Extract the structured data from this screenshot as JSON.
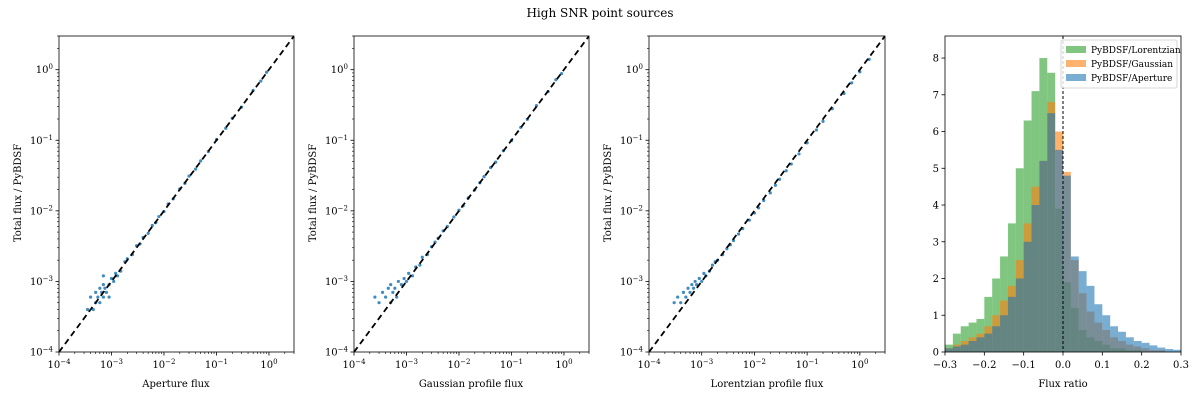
{
  "figure": {
    "title": "High SNR point sources"
  },
  "chart_data": [
    {
      "type": "scatter",
      "xlabel": "Aperture flux",
      "ylabel": "Total flux / PyBDSF",
      "xscale": "log",
      "yscale": "log",
      "xlim": [
        0.0001,
        3
      ],
      "ylim": [
        0.0001,
        3
      ],
      "xticks": [
        {
          "v": 0.0001,
          "b": "10",
          "e": "−4"
        },
        {
          "v": 0.001,
          "b": "10",
          "e": "−3"
        },
        {
          "v": 0.01,
          "b": "10",
          "e": "−2"
        },
        {
          "v": 0.1,
          "b": "10",
          "e": "−1"
        },
        {
          "v": 1,
          "b": "10",
          "e": "0"
        }
      ],
      "yticks": [
        {
          "v": 0.0001,
          "b": "10",
          "e": "−4"
        },
        {
          "v": 0.001,
          "b": "10",
          "e": "−3"
        },
        {
          "v": 0.01,
          "b": "10",
          "e": "−2"
        },
        {
          "v": 0.1,
          "b": "10",
          "e": "−1"
        },
        {
          "v": 1,
          "b": "10",
          "e": "0"
        }
      ],
      "point_color": "#1f77b4",
      "reference_line": {
        "style": "dashed",
        "color": "#000000",
        "points": [
          [
            0.0001,
            0.0001
          ],
          [
            3,
            3
          ]
        ]
      },
      "x": [
        0.00035,
        0.0004,
        0.00045,
        0.0005,
        0.0005,
        0.00055,
        0.0006,
        0.0006,
        0.00065,
        0.0007,
        0.0007,
        0.00075,
        0.0008,
        0.0009,
        0.001,
        0.0011,
        0.0012,
        0.0013,
        0.0015,
        0.0018,
        0.0007,
        0.0009,
        0.002,
        0.0025,
        0.003,
        0.0035,
        0.004,
        0.005,
        0.006,
        0.007,
        0.008,
        0.01,
        0.012,
        0.015,
        0.02,
        0.025,
        0.03,
        0.04,
        0.05,
        0.07,
        0.1,
        0.15,
        0.2,
        0.3,
        0.5,
        0.7,
        0.9
      ],
      "y": [
        0.0004,
        0.0006,
        0.0004,
        0.0005,
        0.0007,
        0.0006,
        0.0005,
        0.0008,
        0.0007,
        0.0006,
        0.0009,
        0.0008,
        0.0007,
        0.0009,
        0.0011,
        0.001,
        0.0013,
        0.0012,
        0.0014,
        0.0019,
        0.0012,
        0.0006,
        0.0021,
        0.0024,
        0.0032,
        0.0034,
        0.0042,
        0.0048,
        0.0062,
        0.0068,
        0.0083,
        0.0098,
        0.0125,
        0.0148,
        0.0205,
        0.0245,
        0.031,
        0.039,
        0.051,
        0.069,
        0.102,
        0.148,
        0.205,
        0.295,
        0.51,
        0.69,
        0.92
      ]
    },
    {
      "type": "scatter",
      "xlabel": "Gaussian profile flux",
      "ylabel": "Total flux / PyBDSF",
      "xscale": "log",
      "yscale": "log",
      "xlim": [
        0.0001,
        3
      ],
      "ylim": [
        0.0001,
        3
      ],
      "xticks": [
        {
          "v": 0.0001,
          "b": "10",
          "e": "−4"
        },
        {
          "v": 0.001,
          "b": "10",
          "e": "−3"
        },
        {
          "v": 0.01,
          "b": "10",
          "e": "−2"
        },
        {
          "v": 0.1,
          "b": "10",
          "e": "−1"
        },
        {
          "v": 1,
          "b": "10",
          "e": "0"
        }
      ],
      "yticks": [
        {
          "v": 0.0001,
          "b": "10",
          "e": "−4"
        },
        {
          "v": 0.001,
          "b": "10",
          "e": "−3"
        },
        {
          "v": 0.01,
          "b": "10",
          "e": "−2"
        },
        {
          "v": 0.1,
          "b": "10",
          "e": "−1"
        },
        {
          "v": 1,
          "b": "10",
          "e": "0"
        }
      ],
      "point_color": "#1f77b4",
      "reference_line": {
        "style": "dashed",
        "color": "#000000",
        "points": [
          [
            0.0001,
            0.0001
          ],
          [
            3,
            3
          ]
        ]
      },
      "x": [
        0.00025,
        0.0003,
        0.00035,
        0.0004,
        0.00045,
        0.0005,
        0.0005,
        0.00055,
        0.0006,
        0.00065,
        0.0007,
        0.0008,
        0.0009,
        0.001,
        0.0011,
        0.0013,
        0.0015,
        0.0018,
        0.002,
        0.0025,
        0.003,
        0.0035,
        0.004,
        0.005,
        0.006,
        0.008,
        0.01,
        0.012,
        0.015,
        0.02,
        0.025,
        0.03,
        0.04,
        0.05,
        0.07,
        0.1,
        0.15,
        0.2,
        0.3,
        0.5,
        0.7,
        0.9
      ],
      "y": [
        0.0006,
        0.0005,
        0.0007,
        0.0006,
        0.0008,
        0.0005,
        0.0009,
        0.0007,
        0.0008,
        0.0006,
        0.001,
        0.0009,
        0.0011,
        0.001,
        0.0013,
        0.0012,
        0.0016,
        0.0017,
        0.0022,
        0.0024,
        0.0031,
        0.0036,
        0.0041,
        0.0052,
        0.006,
        0.0082,
        0.0102,
        0.0118,
        0.0152,
        0.0198,
        0.025,
        0.0305,
        0.041,
        0.049,
        0.071,
        0.099,
        0.152,
        0.198,
        0.31,
        0.49,
        0.72,
        0.88
      ]
    },
    {
      "type": "scatter",
      "xlabel": "Lorentzian profile flux",
      "ylabel": "Total flux / PyBDSF",
      "xscale": "log",
      "yscale": "log",
      "xlim": [
        0.0001,
        3
      ],
      "ylim": [
        0.0001,
        3
      ],
      "xticks": [
        {
          "v": 0.0001,
          "b": "10",
          "e": "−4"
        },
        {
          "v": 0.001,
          "b": "10",
          "e": "−3"
        },
        {
          "v": 0.01,
          "b": "10",
          "e": "−2"
        },
        {
          "v": 0.1,
          "b": "10",
          "e": "−1"
        },
        {
          "v": 1,
          "b": "10",
          "e": "0"
        }
      ],
      "yticks": [
        {
          "v": 0.0001,
          "b": "10",
          "e": "−4"
        },
        {
          "v": 0.001,
          "b": "10",
          "e": "−3"
        },
        {
          "v": 0.01,
          "b": "10",
          "e": "−2"
        },
        {
          "v": 0.1,
          "b": "10",
          "e": "−1"
        },
        {
          "v": 1,
          "b": "10",
          "e": "0"
        }
      ],
      "point_color": "#1f77b4",
      "reference_line": {
        "style": "dashed",
        "color": "#000000",
        "points": [
          [
            0.0001,
            0.0001
          ],
          [
            3,
            3
          ]
        ]
      },
      "x": [
        0.0003,
        0.00035,
        0.0004,
        0.00045,
        0.0005,
        0.00055,
        0.0006,
        0.00065,
        0.0007,
        0.00075,
        0.0008,
        0.0009,
        0.001,
        0.0011,
        0.0012,
        0.0014,
        0.0016,
        0.0018,
        0.002,
        0.0025,
        0.003,
        0.0035,
        0.004,
        0.005,
        0.006,
        0.008,
        0.01,
        0.012,
        0.015,
        0.02,
        0.025,
        0.03,
        0.04,
        0.05,
        0.07,
        0.1,
        0.15,
        0.2,
        0.3,
        0.5,
        0.7,
        1.0,
        1.5
      ],
      "y": [
        0.0005,
        0.0006,
        0.0005,
        0.0007,
        0.0006,
        0.0008,
        0.0007,
        0.0009,
        0.0008,
        0.001,
        0.0009,
        0.0011,
        0.001,
        0.0013,
        0.0012,
        0.0014,
        0.0017,
        0.0019,
        0.002,
        0.0024,
        0.0029,
        0.0033,
        0.0038,
        0.0047,
        0.0056,
        0.0074,
        0.0093,
        0.011,
        0.014,
        0.018,
        0.023,
        0.028,
        0.037,
        0.046,
        0.064,
        0.092,
        0.14,
        0.185,
        0.28,
        0.46,
        0.65,
        0.93,
        1.4
      ]
    },
    {
      "type": "histogram",
      "xlabel": "Flux ratio",
      "ylabel": "",
      "xlim": [
        -0.3,
        0.3
      ],
      "ylim": [
        0,
        8.6
      ],
      "xticks": [
        {
          "v": -0.3,
          "l": "−0.3"
        },
        {
          "v": -0.2,
          "l": "−0.2"
        },
        {
          "v": -0.1,
          "l": "−0.1"
        },
        {
          "v": 0.0,
          "l": "0.0"
        },
        {
          "v": 0.1,
          "l": "0.1"
        },
        {
          "v": 0.2,
          "l": "0.2"
        },
        {
          "v": 0.3,
          "l": "0.3"
        }
      ],
      "yticks": [
        {
          "v": 0,
          "l": "0"
        },
        {
          "v": 1,
          "l": "1"
        },
        {
          "v": 2,
          "l": "2"
        },
        {
          "v": 3,
          "l": "3"
        },
        {
          "v": 4,
          "l": "4"
        },
        {
          "v": 5,
          "l": "5"
        },
        {
          "v": 6,
          "l": "6"
        },
        {
          "v": 7,
          "l": "7"
        },
        {
          "v": 8,
          "l": "8"
        }
      ],
      "bin_edges": [
        -0.3,
        -0.28,
        -0.26,
        -0.24,
        -0.22,
        -0.2,
        -0.18,
        -0.16,
        -0.14,
        -0.12,
        -0.1,
        -0.08,
        -0.06,
        -0.04,
        -0.02,
        0.0,
        0.02,
        0.04,
        0.06,
        0.08,
        0.1,
        0.12,
        0.14,
        0.16,
        0.18,
        0.2,
        0.22,
        0.24,
        0.26,
        0.28,
        0.3
      ],
      "vline": {
        "x": 0.0,
        "style": "dashed",
        "color": "#000000"
      },
      "legend": {
        "loc": "upper right"
      },
      "series": [
        {
          "name": "PyBDSF/Lorentzian",
          "color": "#2ca02c",
          "values": [
            0.2,
            0.5,
            0.7,
            0.8,
            0.9,
            1.5,
            2.0,
            2.6,
            3.5,
            5.0,
            6.3,
            7.1,
            8.0,
            7.6,
            3.9,
            1.9,
            1.2,
            0.6,
            0.4,
            0.3,
            0.2,
            0.1,
            0.1,
            0.05,
            0.05,
            0.0,
            0.0,
            0.0,
            0.0,
            0.0
          ]
        },
        {
          "name": "PyBDSF/Gaussian",
          "color": "#ff7f0e",
          "values": [
            0.1,
            0.2,
            0.3,
            0.4,
            0.5,
            0.7,
            1.0,
            1.4,
            1.8,
            2.5,
            3.5,
            4.5,
            5.2,
            6.8,
            6.0,
            4.9,
            2.5,
            1.6,
            1.1,
            0.8,
            0.6,
            0.4,
            0.3,
            0.2,
            0.15,
            0.1,
            0.05,
            0.05,
            0.0,
            0.0
          ]
        },
        {
          "name": "PyBDSF/Aperture",
          "color": "#1f77b4",
          "values": [
            0.1,
            0.15,
            0.2,
            0.3,
            0.4,
            0.5,
            0.7,
            1.0,
            1.5,
            2.0,
            3.0,
            4.0,
            5.2,
            6.5,
            5.5,
            4.8,
            2.6,
            2.2,
            1.8,
            1.3,
            1.0,
            0.7,
            0.55,
            0.4,
            0.3,
            0.25,
            0.18,
            0.12,
            0.08,
            0.06
          ]
        }
      ]
    }
  ]
}
